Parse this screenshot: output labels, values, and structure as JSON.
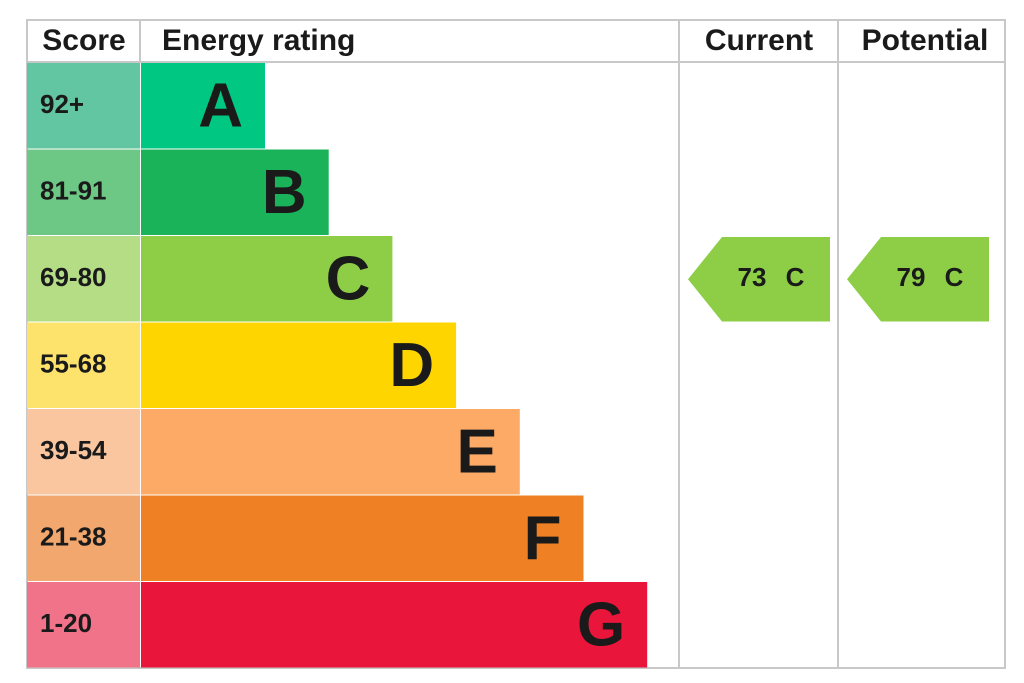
{
  "header": {
    "score": "Score",
    "energy_rating": "Energy rating",
    "current": "Current",
    "potential": "Potential"
  },
  "rating": {
    "rows": [
      {
        "score": "92+",
        "letter": "A",
        "score_color": "#62c6a2",
        "bar_color": "#00c781"
      },
      {
        "score": "81-91",
        "letter": "B",
        "score_color": "#6dc785",
        "bar_color": "#1bb35a"
      },
      {
        "score": "69-80",
        "letter": "C",
        "score_color": "#b4dd86",
        "bar_color": "#8dce46"
      },
      {
        "score": "55-68",
        "letter": "D",
        "score_color": "#fde36c",
        "bar_color": "#ffd500"
      },
      {
        "score": "39-54",
        "letter": "E",
        "score_color": "#f9c6a0",
        "bar_color": "#fcaa65"
      },
      {
        "score": "21-38",
        "letter": "F",
        "score_color": "#f2a76e",
        "bar_color": "#ef8023"
      },
      {
        "score": "1-20",
        "letter": "G",
        "score_color": "#f07389",
        "bar_color": "#e9153b"
      }
    ]
  },
  "current": {
    "value": "73",
    "letter": "C"
  },
  "potential": {
    "value": "79",
    "letter": "C"
  }
}
